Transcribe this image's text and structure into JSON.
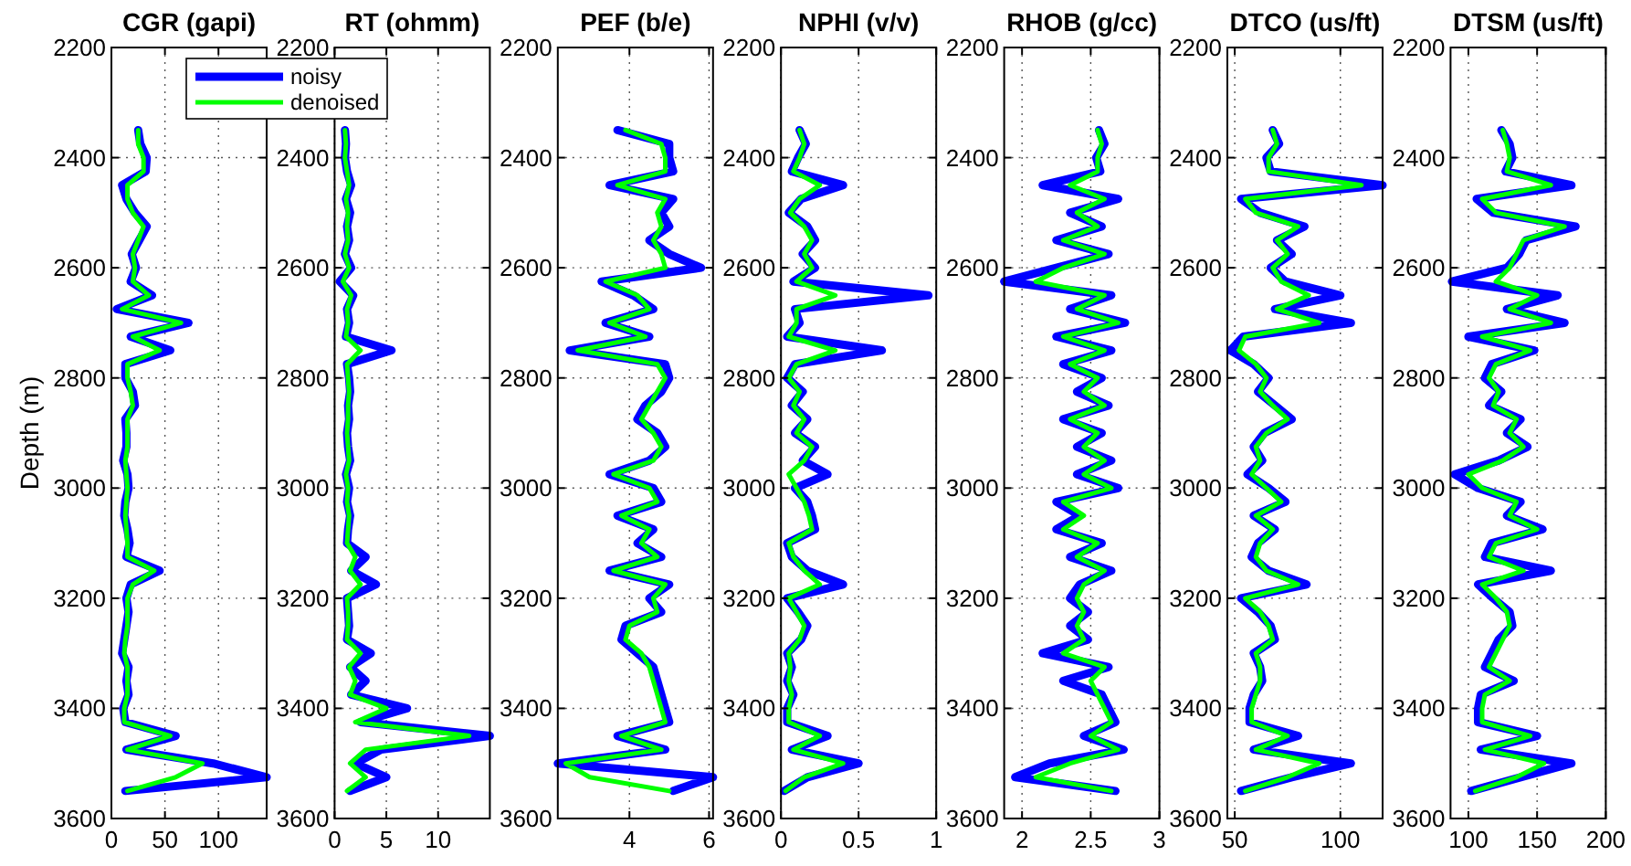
{
  "chart_data": [
    {
      "type": "line",
      "title": "CGR (gapi)",
      "ylabel": "Depth (m)",
      "xlim": [
        0,
        145
      ],
      "xticks": [
        0,
        50,
        100
      ],
      "ylim": [
        3600,
        2200
      ],
      "yticks": [
        2200,
        2400,
        2600,
        2800,
        3000,
        3200,
        3400,
        3600
      ],
      "grid": true,
      "legend": "top right",
      "series": [
        {
          "name": "noisy",
          "color": "#0000ff",
          "x": [
            25,
            27,
            33,
            32,
            10,
            14,
            22,
            33,
            26,
            19,
            23,
            18,
            38,
            5,
            72,
            18,
            55,
            13,
            13,
            20,
            22,
            13,
            14,
            14,
            11,
            15,
            16,
            13,
            12,
            15,
            17,
            14,
            45,
            18,
            14,
            16,
            14,
            12,
            10,
            16,
            14,
            16,
            11,
            13,
            60,
            14,
            95,
            145,
            13
          ],
          "values": [
            2350,
            2375,
            2400,
            2425,
            2450,
            2475,
            2500,
            2525,
            2550,
            2575,
            2600,
            2625,
            2650,
            2675,
            2700,
            2725,
            2750,
            2775,
            2800,
            2825,
            2850,
            2875,
            2900,
            2925,
            2950,
            2975,
            3000,
            3025,
            3050,
            3075,
            3100,
            3125,
            3150,
            3175,
            3200,
            3225,
            3250,
            3275,
            3300,
            3325,
            3350,
            3375,
            3400,
            3425,
            3450,
            3475,
            3500,
            3525,
            3550
          ]
        },
        {
          "name": "denoised",
          "color": "#00ff00",
          "x": [
            25,
            25,
            30,
            30,
            15,
            15,
            20,
            30,
            25,
            20,
            22,
            20,
            35,
            10,
            65,
            20,
            45,
            15,
            15,
            18,
            20,
            15,
            15,
            15,
            13,
            14,
            15,
            14,
            13,
            14,
            15,
            15,
            40,
            20,
            15,
            15,
            15,
            13,
            12,
            15,
            15,
            15,
            12,
            12,
            55,
            15,
            85,
            60,
            15
          ],
          "values": [
            2350,
            2375,
            2400,
            2425,
            2450,
            2475,
            2500,
            2525,
            2550,
            2575,
            2600,
            2625,
            2650,
            2675,
            2700,
            2725,
            2750,
            2775,
            2800,
            2825,
            2850,
            2875,
            2900,
            2925,
            2950,
            2975,
            3000,
            3025,
            3050,
            3075,
            3100,
            3125,
            3150,
            3175,
            3200,
            3225,
            3250,
            3275,
            3300,
            3325,
            3350,
            3375,
            3400,
            3425,
            3450,
            3475,
            3500,
            3525,
            3550
          ]
        }
      ]
    },
    {
      "type": "line",
      "title": "RT (ohmm)",
      "xlim": [
        0,
        15
      ],
      "xticks": [
        0,
        5,
        10
      ],
      "ylim": [
        3600,
        2200
      ],
      "yticks": [
        2200,
        2400,
        2600,
        2800,
        3000,
        3200,
        3400,
        3600
      ],
      "grid": true,
      "series": [
        {
          "color": "#0000ff",
          "x": [
            1,
            1.1,
            1,
            1.2,
            1.6,
            1.1,
            1.5,
            1.2,
            1.4,
            1,
            1.6,
            0.5,
            1.8,
            1.2,
            1.4,
            1.1,
            5.5,
            1.2,
            1.4,
            1.5,
            1.3,
            1.4,
            1.2,
            1.3,
            1.5,
            1.1,
            1.4,
            1.2,
            1.5,
            1.3,
            1.2,
            3,
            1.6,
            4,
            1.2,
            1.3,
            1.4,
            1.2,
            3.5,
            1.5,
            3,
            1.6,
            7,
            2.5,
            15,
            4.5,
            2,
            5,
            1.5
          ],
          "values": [
            2350,
            2375,
            2400,
            2425,
            2450,
            2475,
            2500,
            2525,
            2550,
            2575,
            2600,
            2625,
            2650,
            2675,
            2700,
            2725,
            2750,
            2775,
            2800,
            2825,
            2850,
            2875,
            2900,
            2925,
            2950,
            2975,
            3000,
            3025,
            3050,
            3075,
            3100,
            3125,
            3150,
            3175,
            3200,
            3225,
            3250,
            3275,
            3300,
            3325,
            3350,
            3375,
            3400,
            3425,
            3450,
            3475,
            3500,
            3525,
            3550
          ]
        },
        {
          "color": "#00ff00",
          "x": [
            1,
            1.1,
            1,
            1.2,
            1.4,
            1.1,
            1.3,
            1.2,
            1.3,
            1,
            1.4,
            0.8,
            1.6,
            1.2,
            1.3,
            1.1,
            2.5,
            1.2,
            1.3,
            1.4,
            1.3,
            1.3,
            1.2,
            1.3,
            1.4,
            1.1,
            1.3,
            1.2,
            1.4,
            1.3,
            1.2,
            2,
            1.5,
            2.5,
            1.2,
            1.3,
            1.3,
            1.2,
            2.5,
            1.4,
            2,
            1.5,
            5,
            2,
            13,
            3,
            1.5,
            3,
            1.2
          ],
          "values": [
            2350,
            2375,
            2400,
            2425,
            2450,
            2475,
            2500,
            2525,
            2550,
            2575,
            2600,
            2625,
            2650,
            2675,
            2700,
            2725,
            2750,
            2775,
            2800,
            2825,
            2850,
            2875,
            2900,
            2925,
            2950,
            2975,
            3000,
            3025,
            3050,
            3075,
            3100,
            3125,
            3150,
            3175,
            3200,
            3225,
            3250,
            3275,
            3300,
            3325,
            3350,
            3375,
            3400,
            3425,
            3450,
            3475,
            3500,
            3525,
            3550
          ]
        }
      ]
    },
    {
      "type": "line",
      "title": "PEF (b/e)",
      "xlim": [
        2.2,
        6.1
      ],
      "xticks": [
        4,
        6
      ],
      "ylim": [
        3600,
        2200
      ],
      "yticks": [
        2200,
        2400,
        2600,
        2800,
        3000,
        3200,
        3400,
        3600
      ],
      "grid": true,
      "series": [
        {
          "color": "#0000ff",
          "x": [
            3.7,
            5,
            5,
            5.1,
            3.5,
            5.1,
            4.8,
            5,
            4.5,
            5,
            5.8,
            3.3,
            4.1,
            4.6,
            3.4,
            4.5,
            2.5,
            4.9,
            5,
            4.8,
            4.4,
            4.2,
            4.7,
            4.9,
            4.5,
            3.5,
            4.6,
            4.8,
            3.7,
            4.6,
            4.2,
            4.8,
            3.5,
            5,
            4.5,
            4.8,
            3.9,
            3.8,
            4.2,
            4.6,
            4.7,
            4.8,
            4.9,
            5,
            3.7,
            4.9,
            2.2,
            6.1,
            5.1
          ],
          "values": [
            2350,
            2375,
            2400,
            2425,
            2450,
            2475,
            2500,
            2525,
            2550,
            2575,
            2600,
            2625,
            2650,
            2675,
            2700,
            2725,
            2750,
            2775,
            2800,
            2825,
            2850,
            2875,
            2900,
            2925,
            2950,
            2975,
            3000,
            3025,
            3050,
            3075,
            3100,
            3125,
            3150,
            3175,
            3200,
            3225,
            3250,
            3275,
            3300,
            3325,
            3350,
            3375,
            3400,
            3425,
            3450,
            3475,
            3500,
            3525,
            3550
          ]
        },
        {
          "color": "#00ff00",
          "x": [
            3.9,
            4.8,
            4.9,
            4.9,
            3.7,
            4.9,
            4.7,
            4.8,
            4.6,
            4.8,
            4.9,
            3.4,
            4.2,
            4.5,
            3.5,
            4.4,
            2.7,
            4.7,
            4.9,
            4.7,
            4.5,
            4.3,
            4.6,
            4.8,
            4.6,
            3.6,
            4.5,
            4.7,
            3.8,
            4.5,
            4.3,
            4.7,
            3.6,
            4.9,
            4.6,
            4.7,
            4,
            3.9,
            4.3,
            4.5,
            4.6,
            4.7,
            4.8,
            4.9,
            3.8,
            4.8,
            2.4,
            3,
            5
          ],
          "values": [
            2350,
            2375,
            2400,
            2425,
            2450,
            2475,
            2500,
            2525,
            2550,
            2575,
            2600,
            2625,
            2650,
            2675,
            2700,
            2725,
            2750,
            2775,
            2800,
            2825,
            2850,
            2875,
            2900,
            2925,
            2950,
            2975,
            3000,
            3025,
            3050,
            3075,
            3100,
            3125,
            3150,
            3175,
            3200,
            3225,
            3250,
            3275,
            3300,
            3325,
            3350,
            3375,
            3400,
            3425,
            3450,
            3475,
            3500,
            3525,
            3550
          ]
        }
      ]
    },
    {
      "type": "line",
      "title": "NPHI (v/v)",
      "xlim": [
        0,
        1
      ],
      "xticks": [
        0,
        0.5,
        1
      ],
      "ylim": [
        3600,
        2200
      ],
      "yticks": [
        2200,
        2400,
        2600,
        2800,
        3000,
        3200,
        3400,
        3600
      ],
      "grid": true,
      "series": [
        {
          "color": "#0000ff",
          "x": [
            0.12,
            0.16,
            0.11,
            0.07,
            0.4,
            0.13,
            0.05,
            0.17,
            0.22,
            0.14,
            0.22,
            0.08,
            0.95,
            0.09,
            0.12,
            0.04,
            0.65,
            0.09,
            0.04,
            0.14,
            0.07,
            0.17,
            0.09,
            0.22,
            0.14,
            0.3,
            0.09,
            0.17,
            0.2,
            0.22,
            0.04,
            0.07,
            0.17,
            0.4,
            0.04,
            0.11,
            0.17,
            0.13,
            0.04,
            0.07,
            0.04,
            0.08,
            0.04,
            0.04,
            0.3,
            0.07,
            0.5,
            0.17,
            0.02
          ],
          "values": [
            2350,
            2375,
            2400,
            2425,
            2450,
            2475,
            2500,
            2525,
            2550,
            2575,
            2600,
            2625,
            2650,
            2675,
            2700,
            2725,
            2750,
            2775,
            2800,
            2825,
            2850,
            2875,
            2900,
            2925,
            2950,
            2975,
            3000,
            3025,
            3050,
            3075,
            3100,
            3125,
            3150,
            3175,
            3200,
            3225,
            3250,
            3275,
            3300,
            3325,
            3350,
            3375,
            3400,
            3425,
            3450,
            3475,
            3500,
            3525,
            3550
          ]
        },
        {
          "color": "#00ff00",
          "x": [
            0.12,
            0.15,
            0.12,
            0.08,
            0.25,
            0.12,
            0.06,
            0.15,
            0.2,
            0.15,
            0.2,
            0.1,
            0.35,
            0.1,
            0.1,
            0.05,
            0.35,
            0.1,
            0.05,
            0.12,
            0.08,
            0.15,
            0.1,
            0.2,
            0.15,
            0.05,
            0.1,
            0.15,
            0.18,
            0.2,
            0.05,
            0.08,
            0.15,
            0.25,
            0.05,
            0.1,
            0.15,
            0.12,
            0.05,
            0.06,
            0.05,
            0.07,
            0.05,
            0.05,
            0.25,
            0.08,
            0.4,
            0.15,
            0.03
          ],
          "values": [
            2350,
            2375,
            2400,
            2425,
            2450,
            2475,
            2500,
            2525,
            2550,
            2575,
            2600,
            2625,
            2650,
            2675,
            2700,
            2725,
            2750,
            2775,
            2800,
            2825,
            2850,
            2875,
            2900,
            2925,
            2950,
            2975,
            3000,
            3025,
            3050,
            3075,
            3100,
            3125,
            3150,
            3175,
            3200,
            3225,
            3250,
            3275,
            3300,
            3325,
            3350,
            3375,
            3400,
            3425,
            3450,
            3475,
            3500,
            3525,
            3550
          ]
        }
      ]
    },
    {
      "type": "line",
      "title": "RHOB (g/cc)",
      "xlim": [
        1.87,
        3
      ],
      "xticks": [
        2,
        2.5,
        3
      ],
      "ylim": [
        3600,
        2200
      ],
      "yticks": [
        2200,
        2400,
        2600,
        2800,
        3000,
        3200,
        3400,
        3600
      ],
      "grid": true,
      "series": [
        {
          "color": "#0000ff",
          "x": [
            2.56,
            2.6,
            2.54,
            2.57,
            2.15,
            2.7,
            2.35,
            2.58,
            2.25,
            2.63,
            2.25,
            1.87,
            2.65,
            2.35,
            2.75,
            2.25,
            2.65,
            2.3,
            2.58,
            2.4,
            2.63,
            2.3,
            2.58,
            2.4,
            2.65,
            2.4,
            2.7,
            2.25,
            2.42,
            2.25,
            2.58,
            2.35,
            2.65,
            2.42,
            2.35,
            2.48,
            2.35,
            2.48,
            2.15,
            2.63,
            2.3,
            2.58,
            2.63,
            2.68,
            2.45,
            2.74,
            2.2,
            1.95,
            2.68
          ],
          "values": [
            2350,
            2375,
            2400,
            2425,
            2450,
            2475,
            2500,
            2525,
            2550,
            2575,
            2600,
            2625,
            2650,
            2675,
            2700,
            2725,
            2750,
            2775,
            2800,
            2825,
            2850,
            2875,
            2900,
            2925,
            2950,
            2975,
            3000,
            3025,
            3050,
            3075,
            3100,
            3125,
            3150,
            3175,
            3200,
            3225,
            3250,
            3275,
            3300,
            3325,
            3350,
            3375,
            3400,
            3425,
            3450,
            3475,
            3500,
            3525,
            3550
          ]
        },
        {
          "color": "#00ff00",
          "x": [
            2.55,
            2.58,
            2.55,
            2.55,
            2.35,
            2.6,
            2.4,
            2.55,
            2.3,
            2.6,
            2.3,
            2.1,
            2.6,
            2.4,
            2.7,
            2.3,
            2.6,
            2.35,
            2.55,
            2.45,
            2.6,
            2.35,
            2.55,
            2.45,
            2.6,
            2.45,
            2.65,
            2.3,
            2.45,
            2.3,
            2.55,
            2.4,
            2.6,
            2.45,
            2.4,
            2.45,
            2.4,
            2.45,
            2.3,
            2.6,
            2.5,
            2.55,
            2.6,
            2.65,
            2.5,
            2.7,
            2.35,
            2.1,
            2.65
          ],
          "values": [
            2350,
            2375,
            2400,
            2425,
            2450,
            2475,
            2500,
            2525,
            2550,
            2575,
            2600,
            2625,
            2650,
            2675,
            2700,
            2725,
            2750,
            2775,
            2800,
            2825,
            2850,
            2875,
            2900,
            2925,
            2950,
            2975,
            3000,
            3025,
            3050,
            3075,
            3100,
            3125,
            3150,
            3175,
            3200,
            3225,
            3250,
            3275,
            3300,
            3325,
            3350,
            3375,
            3400,
            3425,
            3450,
            3475,
            3500,
            3525,
            3550
          ]
        }
      ]
    },
    {
      "type": "line",
      "title": "DTCO (us/ft)",
      "xlim": [
        46.5,
        120
      ],
      "xticks": [
        50,
        100
      ],
      "ylim": [
        3600,
        2200
      ],
      "yticks": [
        2200,
        2400,
        2600,
        2800,
        3000,
        3200,
        3400,
        3600
      ],
      "grid": true,
      "series": [
        {
          "color": "#0000ff",
          "x": [
            68,
            71,
            65,
            67,
            120,
            53,
            62,
            83,
            70,
            77,
            67,
            74,
            100,
            69,
            105,
            54,
            48,
            59,
            66,
            61,
            69,
            77,
            64,
            59,
            63,
            56,
            66,
            74,
            59,
            69,
            61,
            58,
            66,
            84,
            53,
            61,
            67,
            69,
            59,
            62,
            63,
            59,
            57,
            57,
            80,
            59,
            105,
            77,
            53
          ],
          "values": [
            2350,
            2375,
            2400,
            2425,
            2450,
            2475,
            2500,
            2525,
            2550,
            2575,
            2600,
            2625,
            2650,
            2675,
            2700,
            2725,
            2750,
            2775,
            2800,
            2825,
            2850,
            2875,
            2900,
            2925,
            2950,
            2975,
            3000,
            3025,
            3050,
            3075,
            3100,
            3125,
            3150,
            3175,
            3200,
            3225,
            3250,
            3275,
            3300,
            3325,
            3350,
            3375,
            3400,
            3425,
            3450,
            3475,
            3500,
            3525,
            3550
          ]
        },
        {
          "color": "#00ff00",
          "x": [
            68,
            70,
            66,
            66,
            110,
            55,
            60,
            80,
            70,
            75,
            68,
            72,
            85,
            70,
            90,
            55,
            52,
            60,
            65,
            62,
            68,
            75,
            65,
            60,
            62,
            58,
            65,
            72,
            60,
            68,
            62,
            60,
            65,
            80,
            55,
            62,
            66,
            68,
            60,
            62,
            62,
            60,
            58,
            58,
            75,
            60,
            90,
            75,
            55
          ],
          "values": [
            2350,
            2375,
            2400,
            2425,
            2450,
            2475,
            2500,
            2525,
            2550,
            2575,
            2600,
            2625,
            2650,
            2675,
            2700,
            2725,
            2750,
            2775,
            2800,
            2825,
            2850,
            2875,
            2900,
            2925,
            2950,
            2975,
            3000,
            3025,
            3050,
            3075,
            3100,
            3125,
            3150,
            3175,
            3200,
            3225,
            3250,
            3275,
            3300,
            3325,
            3350,
            3375,
            3400,
            3425,
            3450,
            3475,
            3500,
            3525,
            3550
          ]
        }
      ]
    },
    {
      "type": "line",
      "title": "DTSM (us/ft)",
      "xlim": [
        87,
        200
      ],
      "xticks": [
        100,
        150,
        200
      ],
      "ylim": [
        3600,
        2200
      ],
      "yticks": [
        2200,
        2400,
        2600,
        2800,
        3000,
        3200,
        3400,
        3600
      ],
      "grid": true,
      "series": [
        {
          "color": "#0000ff",
          "x": [
            124,
            130,
            132,
            127,
            175,
            106,
            118,
            178,
            142,
            137,
            128,
            88,
            165,
            128,
            170,
            100,
            148,
            117,
            112,
            124,
            115,
            138,
            128,
            143,
            122,
            90,
            107,
            138,
            128,
            154,
            117,
            112,
            160,
            107,
            118,
            130,
            132,
            122,
            117,
            112,
            133,
            109,
            107,
            107,
            150,
            109,
            175,
            138,
            102
          ],
          "values": [
            2350,
            2375,
            2400,
            2425,
            2450,
            2475,
            2500,
            2525,
            2550,
            2575,
            2600,
            2625,
            2650,
            2675,
            2700,
            2725,
            2750,
            2775,
            2800,
            2825,
            2850,
            2875,
            2900,
            2925,
            2950,
            2975,
            3000,
            3025,
            3050,
            3075,
            3100,
            3125,
            3150,
            3175,
            3200,
            3225,
            3250,
            3275,
            3300,
            3325,
            3350,
            3375,
            3400,
            3425,
            3450,
            3475,
            3500,
            3525,
            3550
          ]
        },
        {
          "color": "#00ff00",
          "x": [
            125,
            128,
            130,
            128,
            160,
            110,
            120,
            170,
            140,
            135,
            130,
            120,
            150,
            130,
            160,
            110,
            145,
            120,
            115,
            122,
            118,
            135,
            130,
            140,
            125,
            100,
            110,
            135,
            130,
            150,
            120,
            115,
            140,
            110,
            120,
            128,
            130,
            125,
            120,
            115,
            130,
            112,
            110,
            110,
            145,
            112,
            155,
            135,
            105
          ],
          "values": [
            2350,
            2375,
            2400,
            2425,
            2450,
            2475,
            2500,
            2525,
            2550,
            2575,
            2600,
            2625,
            2650,
            2675,
            2700,
            2725,
            2750,
            2775,
            2800,
            2825,
            2850,
            2875,
            2900,
            2925,
            2950,
            2975,
            3000,
            3025,
            3050,
            3075,
            3100,
            3125,
            3150,
            3175,
            3200,
            3225,
            3250,
            3275,
            3300,
            3325,
            3350,
            3375,
            3400,
            3425,
            3450,
            3475,
            3500,
            3525,
            3550
          ]
        }
      ]
    }
  ]
}
